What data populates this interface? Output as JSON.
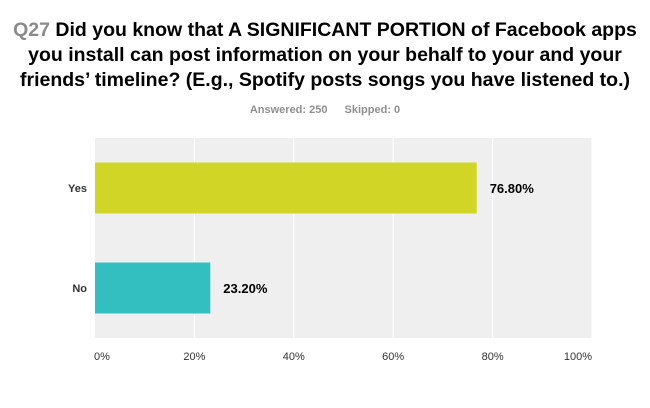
{
  "question": {
    "number": "Q27",
    "text": "Did you know that A SIGNIFICANT PORTION of Facebook apps you install can post information on your behalf to your and your friends’ timeline? (E.g., Spotify posts songs you have listened to.)"
  },
  "stats": {
    "answered": "Answered: 250",
    "skipped": "Skipped: 0"
  },
  "chart_data": {
    "type": "bar",
    "orientation": "horizontal",
    "categories": [
      "Yes",
      "No"
    ],
    "values": [
      76.8,
      23.2
    ],
    "value_labels": [
      "76.80%",
      "23.20%"
    ],
    "colors": [
      "#d1d626",
      "#33bfbf"
    ],
    "xlim": [
      0,
      100
    ],
    "x_ticks": [
      "0%",
      "20%",
      "40%",
      "60%",
      "80%",
      "100%"
    ],
    "grid": true,
    "plot_background": "#efefef",
    "grid_color": "#ffffff"
  }
}
